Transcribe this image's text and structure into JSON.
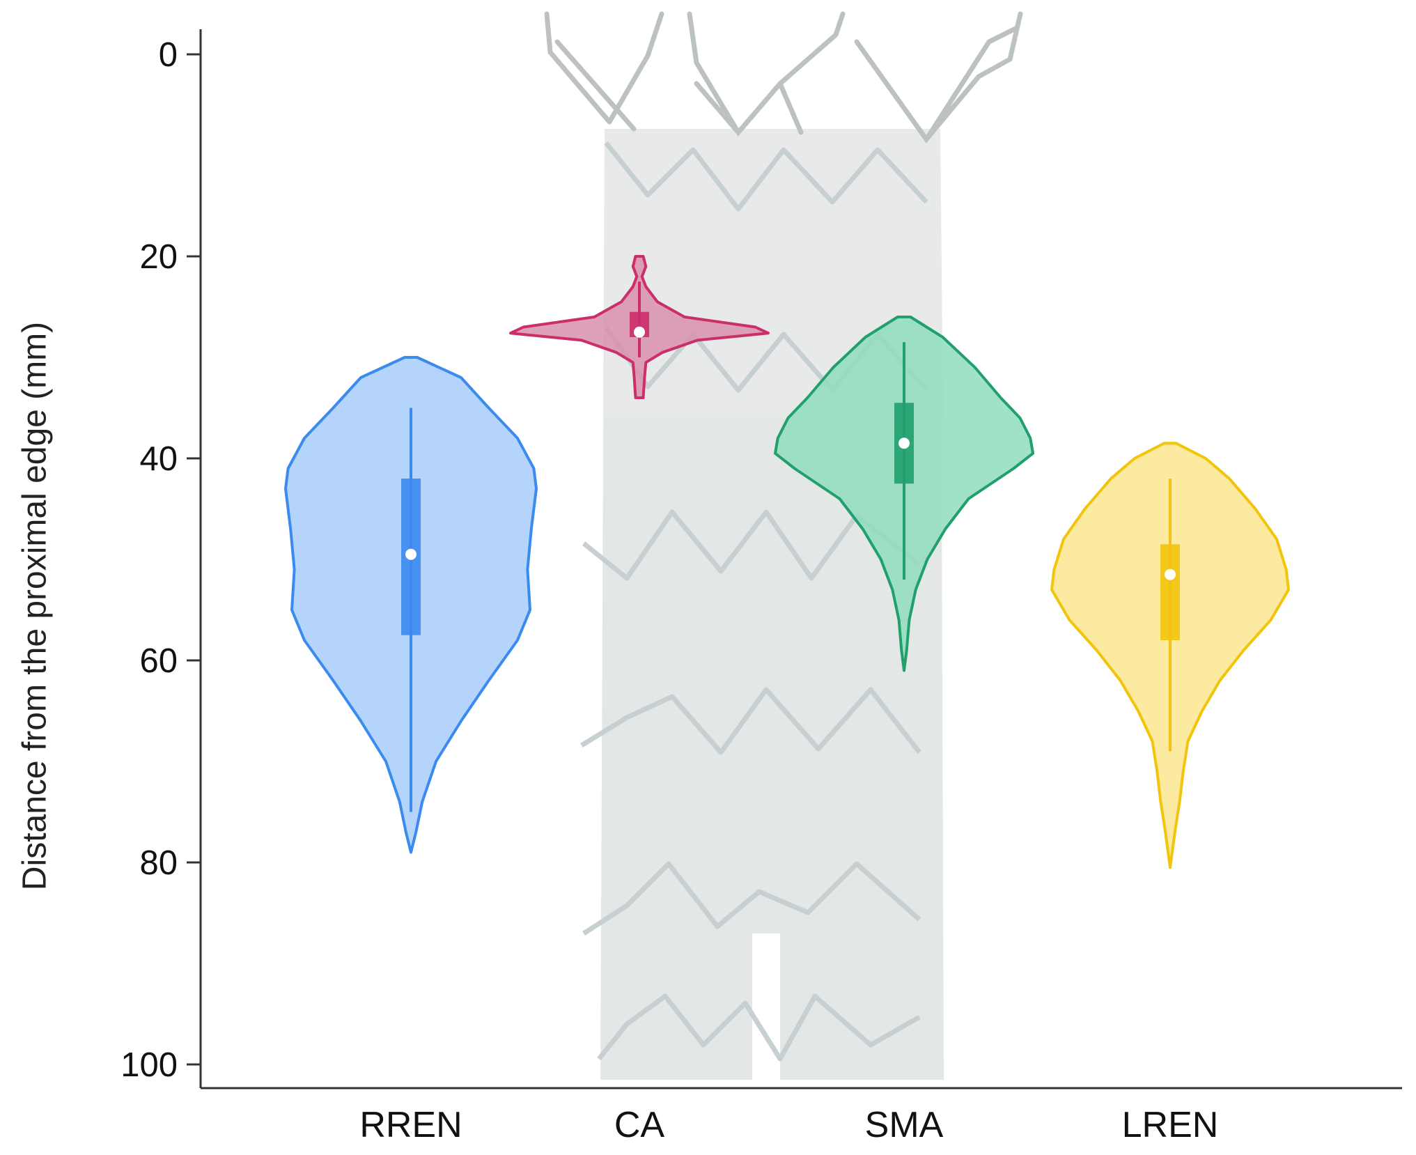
{
  "chart_data": {
    "type": "violin",
    "title": "",
    "xlabel": "",
    "ylabel": "Distance from the proximal edge (mm)",
    "ylim": [
      0,
      100
    ],
    "y_inverted": true,
    "y_ticks": [
      0,
      20,
      40,
      60,
      80,
      100
    ],
    "grid": false,
    "legend": "none",
    "background_image": "stent-graft",
    "categories": [
      "RREN",
      "CA",
      "SMA",
      "LREN"
    ],
    "series": [
      {
        "category": "RREN",
        "color": "#3b8af0",
        "fill": "#a8cdfb",
        "min": 30,
        "max": 79,
        "whisker_low": 35,
        "whisker_high": 75,
        "q1": 42,
        "q3": 57.5,
        "median": 49.5,
        "profile": [
          [
            30,
            0.05
          ],
          [
            32,
            0.4
          ],
          [
            35,
            0.62
          ],
          [
            38,
            0.85
          ],
          [
            41,
            0.98
          ],
          [
            43,
            1.0
          ],
          [
            47,
            0.96
          ],
          [
            51,
            0.93
          ],
          [
            55,
            0.95
          ],
          [
            58,
            0.85
          ],
          [
            62,
            0.62
          ],
          [
            66,
            0.4
          ],
          [
            70,
            0.2
          ],
          [
            74,
            0.09
          ],
          [
            77,
            0.04
          ],
          [
            79,
            0.0
          ]
        ]
      },
      {
        "category": "CA",
        "color": "#cc2e6a",
        "fill": "#d98fad",
        "min": 20,
        "max": 34,
        "whisker_low": 22.5,
        "whisker_high": 30,
        "q1": 25.5,
        "q3": 28,
        "median": 27.5,
        "profile": [
          [
            20,
            0.03
          ],
          [
            21,
            0.05
          ],
          [
            22,
            0.02
          ],
          [
            23,
            0.05
          ],
          [
            24.5,
            0.14
          ],
          [
            26,
            0.35
          ],
          [
            27,
            0.9
          ],
          [
            27.6,
            1.0
          ],
          [
            28.3,
            0.45
          ],
          [
            29.5,
            0.18
          ],
          [
            30.5,
            0.05
          ],
          [
            32,
            0.04
          ],
          [
            34,
            0.03
          ]
        ]
      },
      {
        "category": "SMA",
        "color": "#21a06e",
        "fill": "#8fddbe",
        "min": 26,
        "max": 61,
        "whisker_low": 28.5,
        "whisker_high": 52,
        "q1": 34.5,
        "q3": 42.5,
        "median": 38.5,
        "profile": [
          [
            26,
            0.05
          ],
          [
            28,
            0.3
          ],
          [
            31,
            0.55
          ],
          [
            34,
            0.75
          ],
          [
            36,
            0.9
          ],
          [
            38,
            0.98
          ],
          [
            39.5,
            1.0
          ],
          [
            41,
            0.85
          ],
          [
            44,
            0.5
          ],
          [
            47,
            0.32
          ],
          [
            50,
            0.18
          ],
          [
            53,
            0.09
          ],
          [
            56,
            0.04
          ],
          [
            59,
            0.02
          ],
          [
            61,
            0.0
          ]
        ]
      },
      {
        "category": "LREN",
        "color": "#f2c40c",
        "fill": "#fbe690",
        "min": 38.5,
        "max": 80.5,
        "whisker_low": 42,
        "whisker_high": 69,
        "q1": 48.5,
        "q3": 58,
        "median": 51.5,
        "profile": [
          [
            38.5,
            0.05
          ],
          [
            40,
            0.3
          ],
          [
            42,
            0.5
          ],
          [
            45,
            0.72
          ],
          [
            48,
            0.9
          ],
          [
            51,
            0.98
          ],
          [
            53,
            1.0
          ],
          [
            56,
            0.85
          ],
          [
            59,
            0.62
          ],
          [
            62,
            0.42
          ],
          [
            65,
            0.27
          ],
          [
            68,
            0.15
          ],
          [
            71,
            0.11
          ],
          [
            74,
            0.08
          ],
          [
            77,
            0.04
          ],
          [
            80.5,
            0.0
          ]
        ]
      }
    ]
  }
}
